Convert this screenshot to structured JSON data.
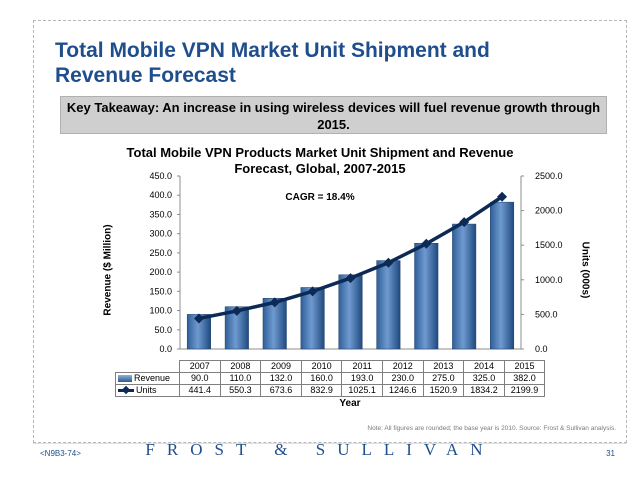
{
  "slide": {
    "title": "Total Mobile VPN Market Unit Shipment and Revenue Forecast",
    "takeaway": "Key Takeaway: An increase in using wireless devices will fuel revenue growth through 2015.",
    "note": "Note: All figures are rounded; the base year is 2010. Source: Frost & Sullivan analysis.",
    "footer_code": "<N9B3-74>",
    "brand": "FROST & SULLIVAN",
    "page_number": "31"
  },
  "chart_data": {
    "type": "bar",
    "title": "Total Mobile VPN Products Market Unit Shipment and Revenue Forecast, Global, 2007-2015",
    "annotation": "CAGR = 18.4%",
    "xlabel": "Year",
    "ylabel": "Revenue ($ Million)",
    "ylabel_right": "Units (000s)",
    "categories": [
      "2007",
      "2008",
      "2009",
      "2010",
      "2011",
      "2012",
      "2013",
      "2014",
      "2015"
    ],
    "series": [
      {
        "name": "Revenue",
        "type": "bar",
        "axis": "left",
        "values": [
          90.0,
          110.0,
          132.0,
          160.0,
          193.0,
          230.0,
          275.0,
          325.0,
          382.0
        ],
        "display": [
          "90.0",
          "110.0",
          "132.0",
          "160.0",
          "193.0",
          "230.0",
          "275.0",
          "325.0",
          "382.0"
        ],
        "color": "#4f81bd"
      },
      {
        "name": "Units",
        "type": "line",
        "axis": "right",
        "values": [
          441.4,
          550.3,
          673.6,
          832.9,
          1025.1,
          1246.6,
          1520.9,
          1834.2,
          2199.9
        ],
        "display": [
          "441.4",
          "550.3",
          "673.6",
          "832.9",
          "1025.1",
          "1246.6",
          "1520.9",
          "1834.2",
          "2199.9"
        ],
        "color": "#0d2a56"
      }
    ],
    "ylim": [
      0,
      450
    ],
    "yticks": [
      "0.0",
      "50.0",
      "100.0",
      "150.0",
      "200.0",
      "250.0",
      "300.0",
      "350.0",
      "400.0",
      "450.0"
    ],
    "ylim_right": [
      0,
      2500
    ],
    "yticks_right": [
      "0.0",
      "500.0",
      "1000.0",
      "1500.0",
      "2000.0",
      "2500.0"
    ],
    "legend": "data-table"
  }
}
